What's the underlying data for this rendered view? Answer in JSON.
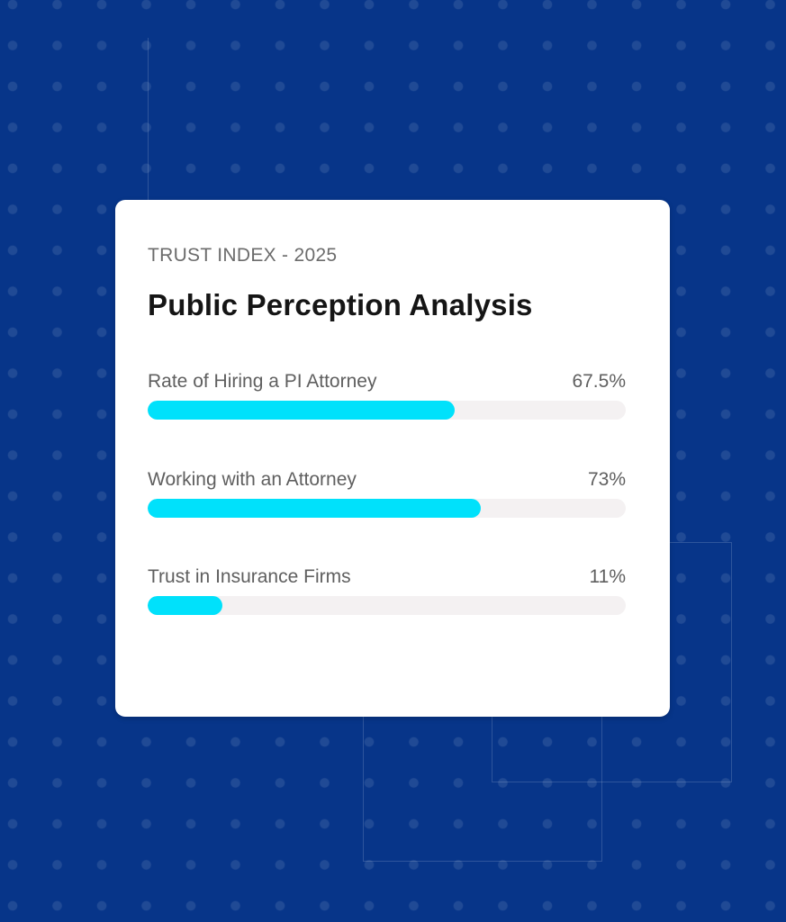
{
  "colors": {
    "background": "#073589",
    "card": "#ffffff",
    "bar_fill": "#00e1fb",
    "bar_track": "#f4f1f2",
    "title_text": "#151515",
    "label_text": "#5f5f5f"
  },
  "card": {
    "eyebrow": "TRUST INDEX - 2025",
    "title": "Public Perception Analysis"
  },
  "metrics": [
    {
      "label": "Rate of Hiring a PI Attorney",
      "value_label": "67.5%",
      "value": 67.5,
      "fill_width_pct": 64.2
    },
    {
      "label": "Working with an Attorney",
      "value_label": "73%",
      "value": 73,
      "fill_width_pct": 69.7
    },
    {
      "label": "Trust in Insurance Firms",
      "value_label": "11%",
      "value": 11,
      "fill_width_pct": 15.6
    }
  ],
  "chart_data": {
    "type": "bar",
    "orientation": "horizontal",
    "title": "Public Perception Analysis",
    "subtitle": "TRUST INDEX - 2025",
    "categories": [
      "Rate of Hiring a PI Attorney",
      "Working with an Attorney",
      "Trust in Insurance Firms"
    ],
    "values": [
      67.5,
      73,
      11
    ],
    "value_labels": [
      "67.5%",
      "73%",
      "11%"
    ],
    "xlabel": "",
    "ylabel": "",
    "xlim": [
      0,
      100
    ],
    "grid": false,
    "legend": null
  }
}
